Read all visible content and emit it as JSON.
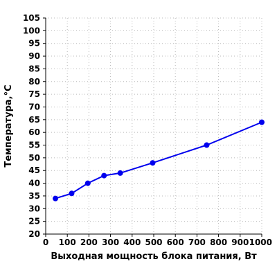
{
  "chart_data": {
    "type": "line",
    "title": "",
    "xlabel": "Выходная мощность блока питания, Вт",
    "ylabel": "Температура,°С",
    "xlim": [
      0,
      1000
    ],
    "ylim": [
      20,
      105
    ],
    "x_ticks": [
      0,
      100,
      200,
      300,
      400,
      500,
      600,
      700,
      800,
      900,
      1000
    ],
    "y_ticks": [
      20,
      25,
      30,
      35,
      40,
      45,
      50,
      55,
      60,
      65,
      70,
      75,
      80,
      85,
      90,
      95,
      100,
      105
    ],
    "grid": true,
    "series": [
      {
        "color": "#0000ee",
        "x": [
          45,
          120,
          195,
          270,
          345,
          495,
          745,
          1000
        ],
        "y": [
          34,
          36,
          40,
          43,
          44,
          48,
          55,
          64
        ]
      }
    ]
  }
}
